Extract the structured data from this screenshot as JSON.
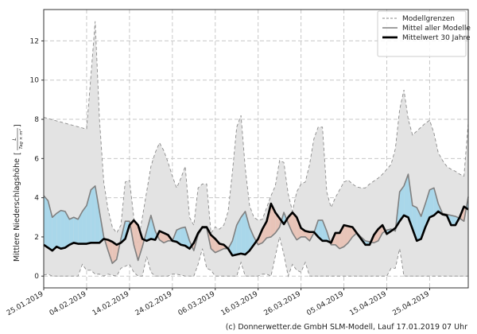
{
  "chart_data": {
    "type": "area",
    "ylabel": "Mittlere Niederschlagshöhe",
    "yunit_numerator": "L",
    "yunit_denominator": "Tag × m²",
    "ylim": [
      -0.6,
      13.6
    ],
    "yticks": [
      0,
      2,
      4,
      6,
      8,
      10,
      12
    ],
    "xticks": [
      "25.01.2019",
      "04.02.2019",
      "14.02.2019",
      "24.02.2019",
      "06.03.2019",
      "16.03.2019",
      "26.03.2019",
      "05.04.2019",
      "15.04.2019",
      "25.04.2019"
    ],
    "grid": true,
    "legend_position": "top-right",
    "dates": [
      "25.01.2019",
      "26.01.2019",
      "27.01.2019",
      "28.01.2019",
      "29.01.2019",
      "30.01.2019",
      "31.01.2019",
      "01.02.2019",
      "02.02.2019",
      "03.02.2019",
      "04.02.2019",
      "05.02.2019",
      "06.02.2019",
      "07.02.2019",
      "08.02.2019",
      "09.02.2019",
      "10.02.2019",
      "11.02.2019",
      "12.02.2019",
      "13.02.2019",
      "14.02.2019",
      "15.02.2019",
      "16.02.2019",
      "17.02.2019",
      "18.02.2019",
      "19.02.2019",
      "20.02.2019",
      "21.02.2019",
      "22.02.2019",
      "23.02.2019",
      "24.02.2019",
      "25.02.2019",
      "26.02.2019",
      "27.02.2019",
      "28.02.2019",
      "01.03.2019",
      "02.03.2019",
      "03.03.2019",
      "04.03.2019",
      "05.03.2019",
      "06.03.2019",
      "07.03.2019",
      "08.03.2019",
      "09.03.2019",
      "10.03.2019",
      "11.03.2019",
      "12.03.2019",
      "13.03.2019",
      "14.03.2019",
      "15.03.2019",
      "16.03.2019",
      "17.03.2019",
      "18.03.2019",
      "19.03.2019",
      "20.03.2019",
      "21.03.2019",
      "22.03.2019",
      "23.03.2019",
      "24.03.2019",
      "25.03.2019",
      "26.03.2019",
      "27.03.2019",
      "28.03.2019",
      "29.03.2019",
      "30.03.2019",
      "31.03.2019",
      "01.04.2019",
      "02.04.2019",
      "03.04.2019",
      "04.04.2019",
      "05.04.2019",
      "06.04.2019",
      "07.04.2019",
      "08.04.2019",
      "09.04.2019",
      "10.04.2019",
      "11.04.2019",
      "12.04.2019",
      "13.04.2019",
      "14.04.2019",
      "15.04.2019",
      "16.04.2019",
      "17.04.2019",
      "18.04.2019",
      "19.04.2019",
      "20.04.2019",
      "21.04.2019",
      "22.04.2019",
      "23.04.2019",
      "24.04.2019",
      "25.04.2019",
      "26.04.2019",
      "27.04.2019",
      "28.04.2019",
      "29.04.2019",
      "30.04.2019",
      "01.05.2019",
      "02.05.2019",
      "03.05.2019",
      "04.05.2019"
    ],
    "band": {
      "name": "Modellgrenzen",
      "upper": [
        8.1,
        8.04,
        7.98,
        7.92,
        7.86,
        7.8,
        7.74,
        7.68,
        7.62,
        7.56,
        7.5,
        10.2,
        13.0,
        8.0,
        4.8,
        3.4,
        2.5,
        2.2,
        2.6,
        4.8,
        4.9,
        3.0,
        1.7,
        3.0,
        4.3,
        5.6,
        6.3,
        6.8,
        6.4,
        5.8,
        5.1,
        4.5,
        5.0,
        5.6,
        3.0,
        2.6,
        4.5,
        4.7,
        4.7,
        2.2,
        2.5,
        2.4,
        2.6,
        3.3,
        5.3,
        7.6,
        8.2,
        5.5,
        3.6,
        3.0,
        2.85,
        2.9,
        3.5,
        4.1,
        4.6,
        5.9,
        5.8,
        4.2,
        3.3,
        4.3,
        4.7,
        4.8,
        5.7,
        7.0,
        7.6,
        7.6,
        4.3,
        3.5,
        4.0,
        4.4,
        4.8,
        4.9,
        4.7,
        4.55,
        4.5,
        4.5,
        4.7,
        4.85,
        5.0,
        5.2,
        5.45,
        5.7,
        6.5,
        8.5,
        9.5,
        8.0,
        7.2,
        7.4,
        7.6,
        7.8,
        7.95,
        7.3,
        6.3,
        5.9,
        5.6,
        5.45,
        5.35,
        5.2,
        5.1,
        7.8
      ],
      "lower": [
        0.05,
        0.1,
        0,
        0,
        0,
        0,
        0,
        0,
        0,
        0.6,
        0.3,
        0.3,
        0.1,
        0.1,
        0,
        0.1,
        0.05,
        0,
        0.4,
        0.5,
        0.6,
        0.2,
        0,
        0,
        1.0,
        0.2,
        0,
        0,
        0,
        0,
        0.1,
        0.1,
        0.05,
        0,
        0,
        0,
        0.6,
        1.4,
        0.4,
        0.3,
        0,
        0,
        0,
        0,
        0,
        0,
        0.7,
        0,
        0,
        0,
        0,
        0.1,
        0.1,
        0,
        1.0,
        2.0,
        1.1,
        0,
        0.6,
        0.3,
        0.2,
        0.7,
        0,
        0,
        0,
        0,
        0,
        0,
        0,
        0,
        0,
        0,
        0,
        0,
        0,
        0,
        0,
        0,
        0,
        0,
        0,
        0.4,
        0.4,
        1.4,
        0,
        0,
        0,
        0,
        0,
        0,
        0,
        0,
        0,
        0,
        0,
        0,
        0,
        0,
        0,
        0
      ]
    },
    "series": [
      {
        "name": "Mittel aller Modelle",
        "color": "#808080",
        "values": [
          4.1,
          3.85,
          3.0,
          3.2,
          3.35,
          3.3,
          2.9,
          3.0,
          2.9,
          3.3,
          3.6,
          4.4,
          4.6,
          3.3,
          2.0,
          1.3,
          0.65,
          0.85,
          1.9,
          2.8,
          2.8,
          1.6,
          0.8,
          1.5,
          2.3,
          3.1,
          2.3,
          1.85,
          1.7,
          1.8,
          1.8,
          2.35,
          2.45,
          2.5,
          1.8,
          1.3,
          2.1,
          2.45,
          2.45,
          1.4,
          1.2,
          1.3,
          1.4,
          1.4,
          1.8,
          2.6,
          3.0,
          3.3,
          2.5,
          2.0,
          1.6,
          1.7,
          1.95,
          2.0,
          2.2,
          2.5,
          3.25,
          2.7,
          2.2,
          1.85,
          2.0,
          2.0,
          1.8,
          2.2,
          2.85,
          2.85,
          2.3,
          1.6,
          1.6,
          1.4,
          1.5,
          1.7,
          2.0,
          2.2,
          2.0,
          1.8,
          1.75,
          1.7,
          1.8,
          2.2,
          2.35,
          2.4,
          2.3,
          4.3,
          4.6,
          5.2,
          3.6,
          3.5,
          3.05,
          3.7,
          4.4,
          4.5,
          3.7,
          3.2,
          3.15,
          3.1,
          3.05,
          2.95,
          2.8,
          4.05
        ]
      },
      {
        "name": "Mittelwert 30 Jahre",
        "color": "#000000",
        "values": [
          1.6,
          1.45,
          1.3,
          1.5,
          1.4,
          1.45,
          1.6,
          1.7,
          1.65,
          1.65,
          1.65,
          1.7,
          1.7,
          1.7,
          1.9,
          1.85,
          1.75,
          1.6,
          1.7,
          1.9,
          2.6,
          2.85,
          2.6,
          1.9,
          1.8,
          1.9,
          1.85,
          2.3,
          2.2,
          2.1,
          1.8,
          1.75,
          1.6,
          1.55,
          1.4,
          1.7,
          2.2,
          2.5,
          2.5,
          2.1,
          1.9,
          1.65,
          1.6,
          1.4,
          1.05,
          1.1,
          1.15,
          1.1,
          1.3,
          1.6,
          1.9,
          2.4,
          2.8,
          3.7,
          3.25,
          2.95,
          2.65,
          3.0,
          3.25,
          3.0,
          2.45,
          2.3,
          2.25,
          2.25,
          2.0,
          1.8,
          1.8,
          1.7,
          2.2,
          2.2,
          2.6,
          2.55,
          2.5,
          2.2,
          1.9,
          1.6,
          1.6,
          2.1,
          2.4,
          2.6,
          2.15,
          2.3,
          2.45,
          2.8,
          3.1,
          3.0,
          2.4,
          1.8,
          1.9,
          2.5,
          3.0,
          3.1,
          3.3,
          3.15,
          3.1,
          2.6,
          2.6,
          3.0,
          3.55,
          3.4
        ]
      }
    ],
    "fill_colors": {
      "band": "#e3e3e3",
      "above": "#a9d7ea",
      "below": "#e8c4b8"
    },
    "legend": [
      "Modellgrenzen",
      "Mittel aller Modelle",
      "Mittelwert 30 Jahre"
    ]
  },
  "footer": "(c) Donnerwetter.de GmbH SLM-Modell, Lauf 17.01.2019 07 Uhr"
}
